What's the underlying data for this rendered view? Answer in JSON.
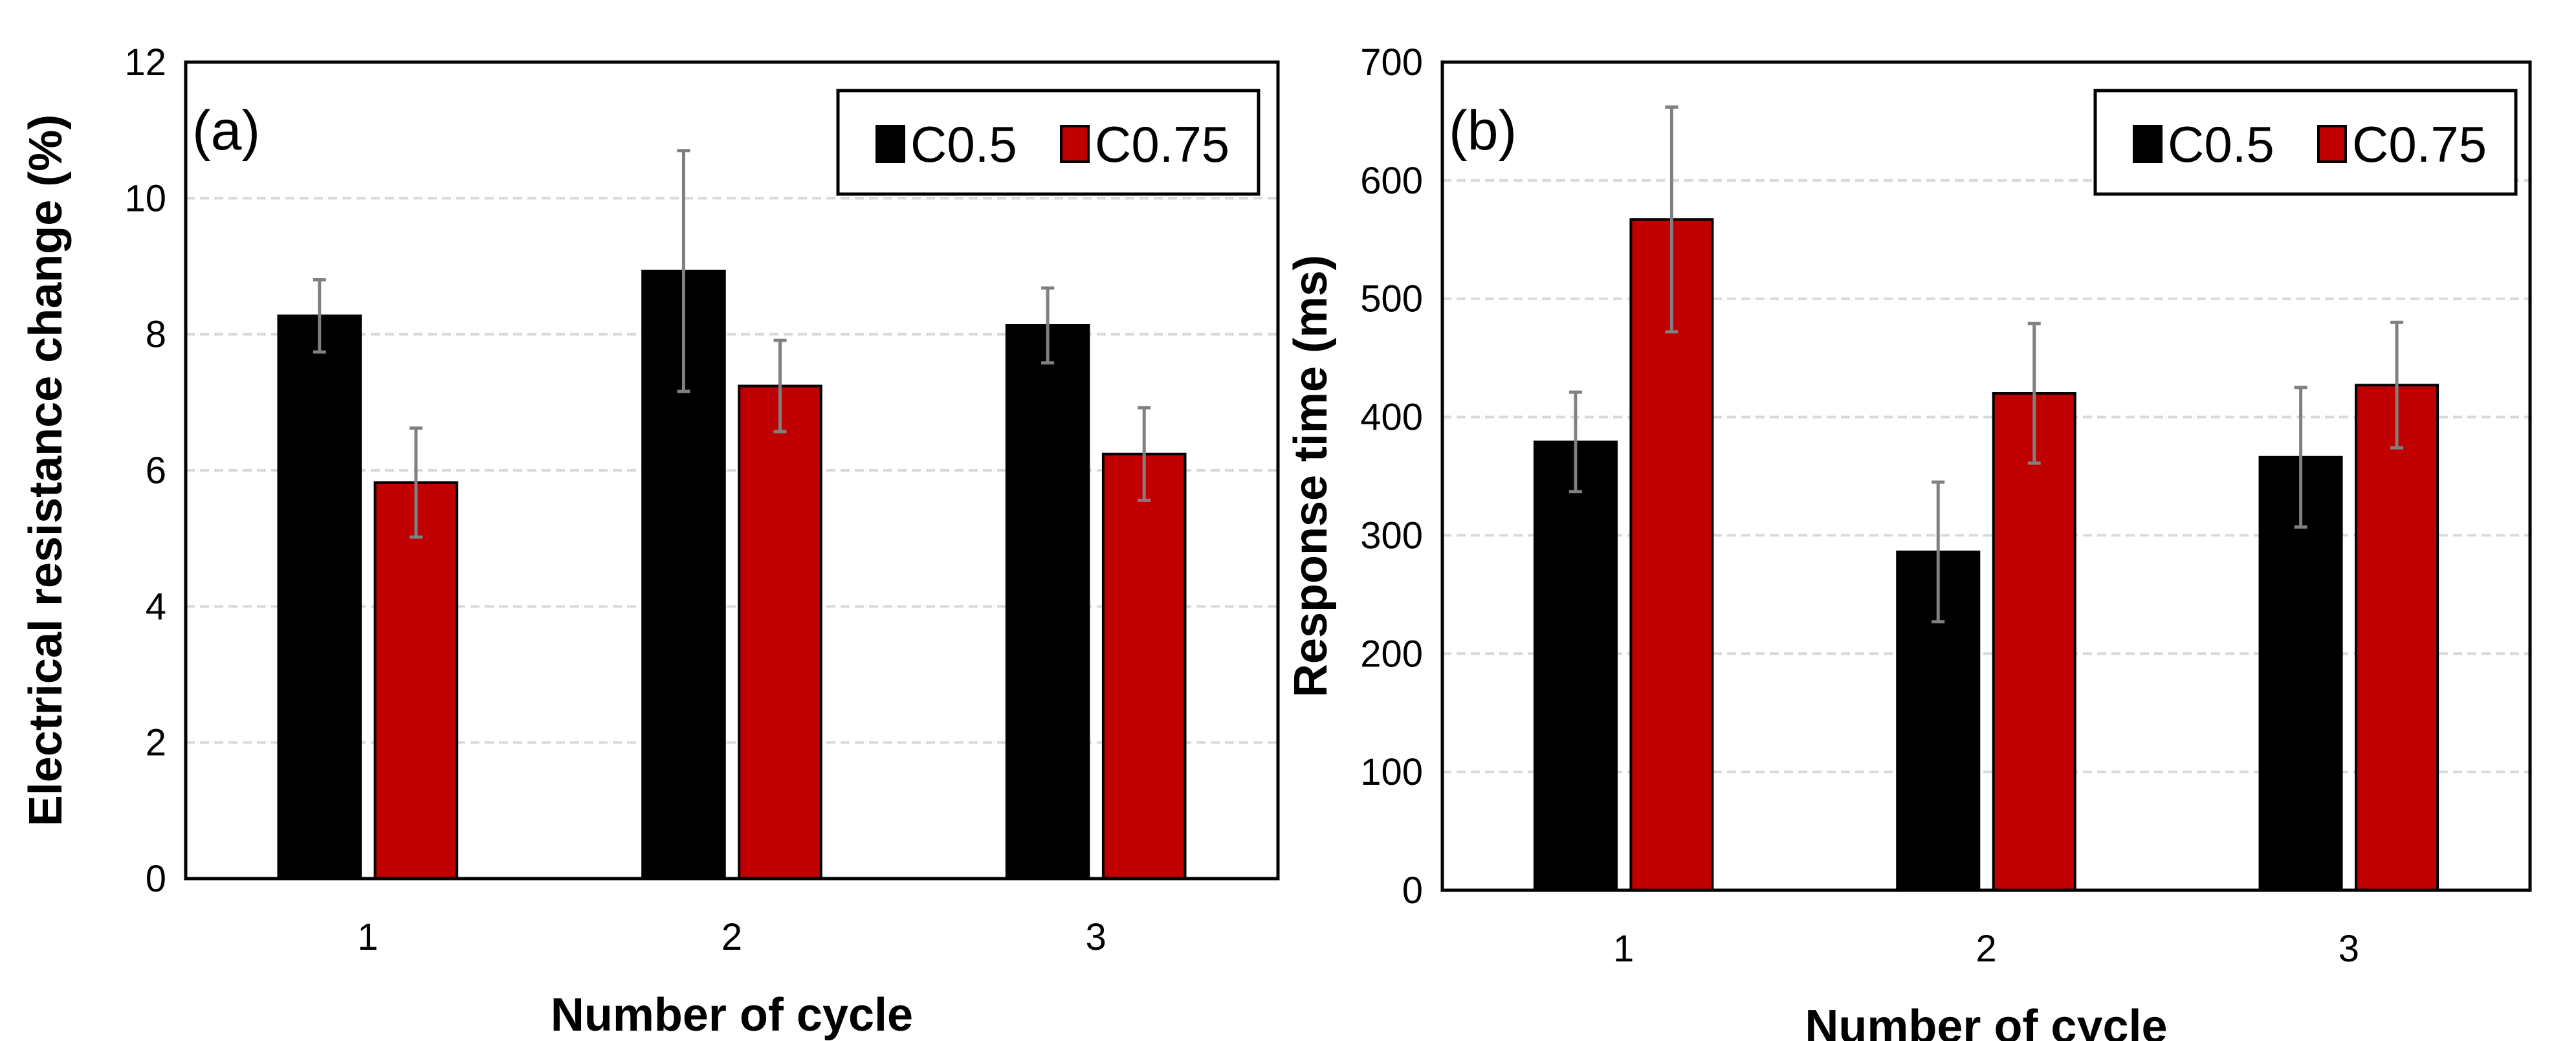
{
  "colors": {
    "C0.5": "#000000",
    "C0.75": "#c00000",
    "error_bar": "#808080",
    "grid": "#d9d9d9"
  },
  "chart_data": [
    {
      "type": "bar",
      "panel_label": "(a)",
      "title": "",
      "xlabel": "Number of cycle",
      "ylabel": "Electrical resistance change (%)",
      "categories": [
        "1",
        "2",
        "3"
      ],
      "ylim": [
        0,
        12
      ],
      "yticks": [
        0,
        2,
        4,
        6,
        8,
        10,
        12
      ],
      "grid": true,
      "legend_position": "top-right",
      "series": [
        {
          "name": "C0.5",
          "values": [
            8.27,
            8.93,
            8.13
          ],
          "errors": [
            0.53,
            1.77,
            0.55
          ]
        },
        {
          "name": "C0.75",
          "values": [
            5.82,
            7.24,
            6.24
          ],
          "errors": [
            0.8,
            0.67,
            0.68
          ]
        }
      ]
    },
    {
      "type": "bar",
      "panel_label": "(b)",
      "title": "",
      "xlabel": "Number of cycle",
      "ylabel": "Response time (ms)",
      "categories": [
        "1",
        "2",
        "3"
      ],
      "ylim": [
        0,
        700
      ],
      "yticks": [
        0,
        100,
        200,
        300,
        400,
        500,
        600,
        700
      ],
      "grid": true,
      "legend_position": "top-right",
      "series": [
        {
          "name": "C0.5",
          "values": [
            379,
            286,
            366
          ],
          "errors": [
            42,
            59,
            59
          ]
        },
        {
          "name": "C0.75",
          "values": [
            567,
            420,
            427
          ],
          "errors": [
            95,
            59,
            53
          ]
        }
      ]
    }
  ]
}
